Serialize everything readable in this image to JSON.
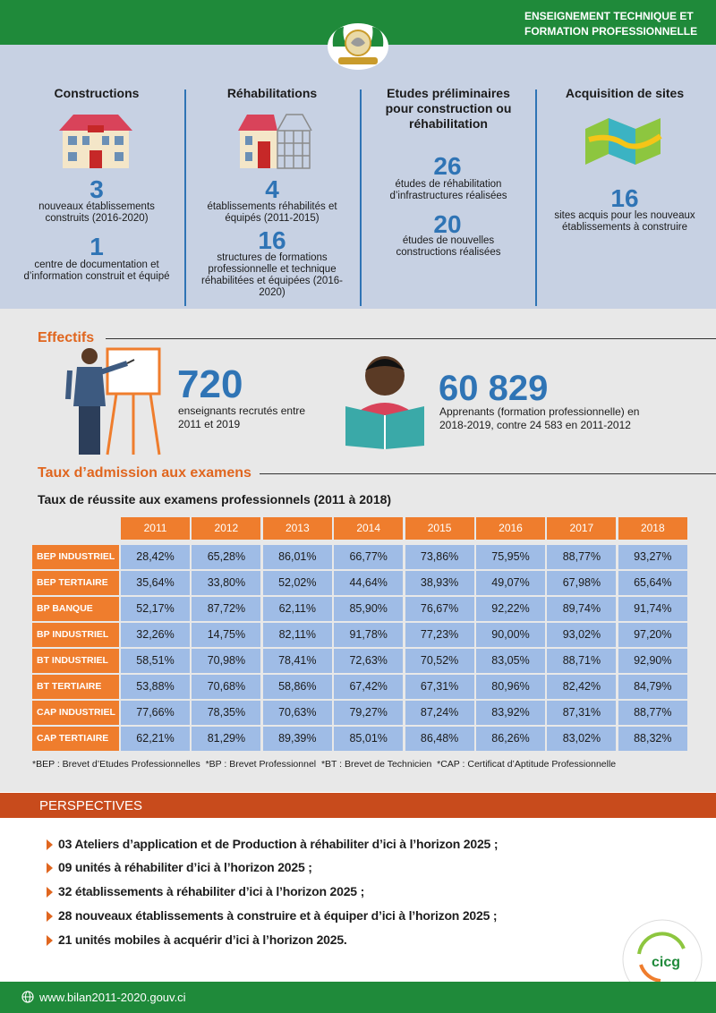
{
  "header": {
    "title_lines": [
      "ENSEIGNEMENT TECHNIQUE ET",
      "FORMATION PROFESSIONNELLE"
    ]
  },
  "columns": [
    {
      "title": "Constructions",
      "stats": [
        {
          "number": "3",
          "label": "nouveaux établissements construits (2016-2020)"
        },
        {
          "number": "1",
          "label": "centre de documentation et d’information construit et équipé"
        }
      ]
    },
    {
      "title": "Réhabilitations",
      "stats": [
        {
          "number": "4",
          "label": "établissements réhabilités et équipés (2011-2015)"
        },
        {
          "number": "16",
          "label": "structures de formations professionnelle et technique réhabilitées et équipées (2016-2020)"
        }
      ]
    },
    {
      "title": "Etudes préliminaires pour construction ou réhabilitation",
      "stats": [
        {
          "number": "26",
          "label": "études de réhabilitation d’infrastructures réalisées"
        },
        {
          "number": "20",
          "label": "études de nouvelles constructions réalisées"
        }
      ]
    },
    {
      "title": "Acquisition de sites",
      "stats": [
        {
          "number": "16",
          "label": "sites acquis pour les nouveaux établissements à construire"
        }
      ]
    }
  ],
  "effectifs": {
    "title": "Effectifs",
    "items": [
      {
        "number": "720",
        "label": "enseignants recrutés entre 2011 et 2019"
      },
      {
        "number": "60 829",
        "label": "Apprenants (formation professionnelle) en 2018-2019, contre 24 583 en 2011-2012"
      }
    ]
  },
  "admission": {
    "title": "Taux d’admission aux examens",
    "table": {
      "title": "Taux de réussite aux examens professionnels (2011 à 2018)",
      "columns": [
        "2011",
        "2012",
        "2013",
        "2014",
        "2015",
        "2016",
        "2017",
        "2018"
      ],
      "rows": [
        {
          "label": "BEP INDUSTRIEL",
          "cells": [
            "28,42%",
            "65,28%",
            "86,01%",
            "66,77%",
            "73,86%",
            "75,95%",
            "88,77%",
            "93,27%"
          ]
        },
        {
          "label": "BEP TERTIAIRE",
          "cells": [
            "35,64%",
            "33,80%",
            "52,02%",
            "44,64%",
            "38,93%",
            "49,07%",
            "67,98%",
            "65,64%"
          ]
        },
        {
          "label": "BP BANQUE",
          "cells": [
            "52,17%",
            "87,72%",
            "62,11%",
            "85,90%",
            "76,67%",
            "92,22%",
            "89,74%",
            "91,74%"
          ]
        },
        {
          "label": "BP INDUSTRIEL",
          "cells": [
            "32,26%",
            "14,75%",
            "82,11%",
            "91,78%",
            "77,23%",
            "90,00%",
            "93,02%",
            "97,20%"
          ]
        },
        {
          "label": "BT INDUSTRIEL",
          "cells": [
            "58,51%",
            "70,98%",
            "78,41%",
            "72,63%",
            "70,52%",
            "83,05%",
            "88,71%",
            "92,90%"
          ]
        },
        {
          "label": "BT TERTIAIRE",
          "cells": [
            "53,88%",
            "70,68%",
            "58,86%",
            "67,42%",
            "67,31%",
            "80,96%",
            "82,42%",
            "84,79%"
          ]
        },
        {
          "label": "CAP INDUSTRIEL",
          "cells": [
            "77,66%",
            "78,35%",
            "70,63%",
            "79,27%",
            "87,24%",
            "83,92%",
            "87,31%",
            "88,77%"
          ]
        },
        {
          "label": "CAP TERTIAIRE",
          "cells": [
            "62,21%",
            "81,29%",
            "89,39%",
            "85,01%",
            "86,48%",
            "86,26%",
            "83,02%",
            "88,32%"
          ]
        }
      ]
    },
    "footnote": "*BEP : Brevet d’Etudes Professionnelles  *BP : Brevet Professionnel  *BT : Brevet de Technicien  *CAP : Certificat d’Aptitude Professionnelle"
  },
  "perspectives": {
    "title": "PERSPECTIVES",
    "items": [
      "03 Ateliers d’application et de Production à réhabiliter d’ici à l’horizon 2025 ;",
      "09 unités à réhabiliter d’ici à l’horizon 2025 ;",
      "32 établissements à réhabiliter d’ici à l’horizon 2025 ;",
      "28 nouveaux établissements à construire et à équiper d’ici à l’horizon 2025 ;",
      "21 unités mobiles à acquérir d’ici à l’horizon 2025."
    ]
  },
  "logo": {
    "text": "cicg"
  },
  "footer": {
    "url": "www.bilan2011-2020.gouv.ci"
  }
}
